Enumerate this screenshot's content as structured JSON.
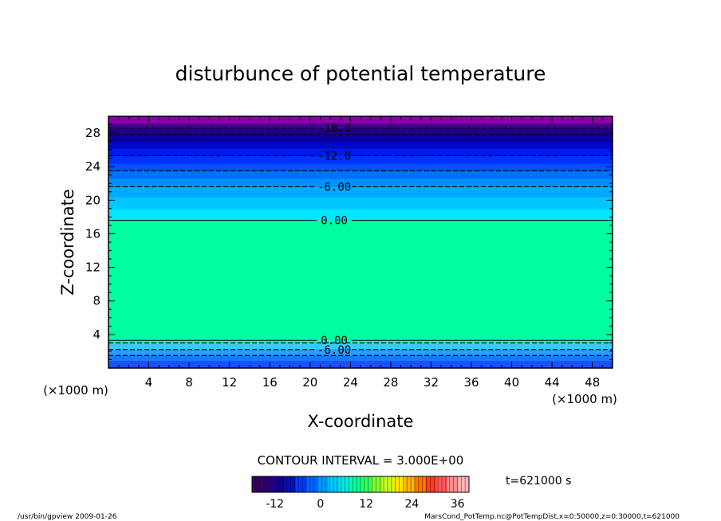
{
  "chart_data": {
    "type": "heatmap",
    "title": "disturbunce of potential temperature",
    "xlabel": "X-coordinate",
    "ylabel": "Z-coordinate",
    "x_unit": "(×1000 m)",
    "z_unit": "(×1000 m)",
    "xlim": [
      0,
      50
    ],
    "ylim": [
      0,
      30
    ],
    "x_ticks": [
      4,
      8,
      12,
      16,
      20,
      24,
      28,
      32,
      36,
      40,
      44,
      48
    ],
    "y_ticks": [
      4,
      8,
      12,
      16,
      20,
      24,
      28
    ],
    "field_bands": [
      {
        "z_from": 0.0,
        "z_to": 0.9,
        "color": "#1a50ff"
      },
      {
        "z_from": 0.9,
        "z_to": 1.6,
        "color": "#1e78ff"
      },
      {
        "z_from": 1.6,
        "z_to": 2.3,
        "color": "#2aa0ff"
      },
      {
        "z_from": 2.3,
        "z_to": 3.0,
        "color": "#3cc8ff"
      },
      {
        "z_from": 3.0,
        "z_to": 3.4,
        "color": "#12f0c8"
      },
      {
        "z_from": 3.4,
        "z_to": 17.6,
        "color": "#00ffa0"
      },
      {
        "z_from": 17.6,
        "z_to": 19.0,
        "color": "#00e6ff"
      },
      {
        "z_from": 19.0,
        "z_to": 20.4,
        "color": "#00c8ff"
      },
      {
        "z_from": 20.4,
        "z_to": 21.6,
        "color": "#00aaff"
      },
      {
        "z_from": 21.6,
        "z_to": 22.6,
        "color": "#0090ff"
      },
      {
        "z_from": 22.6,
        "z_to": 23.5,
        "color": "#0070ff"
      },
      {
        "z_from": 23.5,
        "z_to": 24.4,
        "color": "#0050ff"
      },
      {
        "z_from": 24.4,
        "z_to": 25.3,
        "color": "#0032ff"
      },
      {
        "z_from": 25.3,
        "z_to": 26.2,
        "color": "#001ae6"
      },
      {
        "z_from": 26.2,
        "z_to": 27.0,
        "color": "#0008c8"
      },
      {
        "z_from": 27.0,
        "z_to": 27.8,
        "color": "#0a00a0"
      },
      {
        "z_from": 27.8,
        "z_to": 28.6,
        "color": "#1e0082"
      },
      {
        "z_from": 28.6,
        "z_to": 29.2,
        "color": "#46008c"
      },
      {
        "z_from": 29.2,
        "z_to": 30.0,
        "color": "#8c00aa"
      }
    ],
    "contours": [
      {
        "level": -18,
        "z": 28.6,
        "label": "-18.0",
        "dashed": true
      },
      {
        "level": -15,
        "z": 27.8,
        "label": "",
        "dashed": true
      },
      {
        "level": -12,
        "z": 25.3,
        "label": "-12.0",
        "dashed": true
      },
      {
        "level": -9,
        "z": 23.5,
        "label": "",
        "dashed": true
      },
      {
        "level": -6,
        "z": 21.6,
        "label": "-6.00",
        "dashed": true
      },
      {
        "level": 0,
        "z": 17.6,
        "label": "0.00",
        "dashed": false
      },
      {
        "level": 0,
        "z": 3.3,
        "label": "0.00",
        "dashed": false
      },
      {
        "level": -3,
        "z": 3.0,
        "label": "",
        "dashed": true
      },
      {
        "level": -6,
        "z": 2.2,
        "label": "-6.00",
        "dashed": true
      },
      {
        "level": -9,
        "z": 1.5,
        "label": "",
        "dashed": true
      }
    ],
    "contour_interval_text": "CONTOUR INTERVAL = 3.000E+00",
    "colorbar": {
      "min": -18,
      "max": 39,
      "ticks": [
        -12,
        0,
        12,
        24,
        36
      ],
      "colors": [
        "#3a005a",
        "#280070",
        "#100090",
        "#0010c0",
        "#0038ff",
        "#0064ff",
        "#0096ff",
        "#00c8ff",
        "#00eee0",
        "#00ffa0",
        "#30ff60",
        "#80ff30",
        "#c8ff20",
        "#ffe600",
        "#ffb400",
        "#ff7800",
        "#ff3c20",
        "#ff5a5a",
        "#ff8c8c",
        "#ffb4b4"
      ]
    },
    "time_label": "t=621000 s"
  },
  "footer": {
    "left": "/usr/bin/gpview   2009-01-26",
    "right": "MarsCond_PotTemp.nc@PotTempDist,x=0:50000,z=0:30000,t=621000"
  }
}
